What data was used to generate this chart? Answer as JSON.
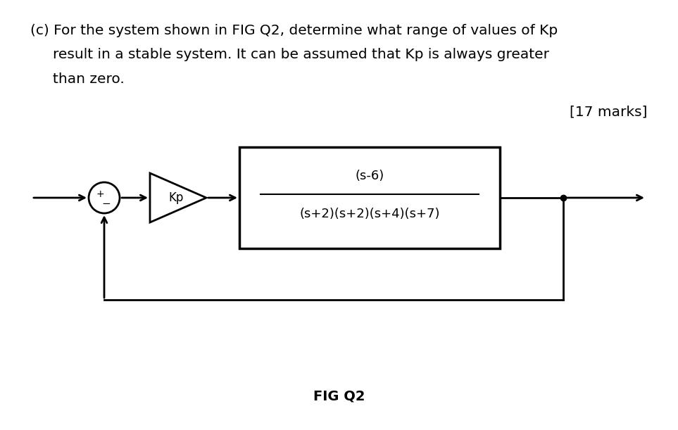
{
  "title_text": "(c) For the system shown in FIG Q2, determine what range of values of Kp",
  "line2_text": "result in a stable system. It can be assumed that Kp is always greater",
  "line3_text": "than zero.",
  "marks_text": "[17 marks]",
  "fig_label": "FIG Q2",
  "numerator": "(s-6)",
  "denominator": "(s+2)(s+2)(s+4)(s+7)",
  "gain_label": "Kp",
  "bg_color": "#ffffff",
  "text_color": "#000000",
  "diagram_color": "#000000",
  "box_fill": "#ffffff",
  "font_size_title": 14.5,
  "font_size_box": 13,
  "font_size_fig": 14
}
